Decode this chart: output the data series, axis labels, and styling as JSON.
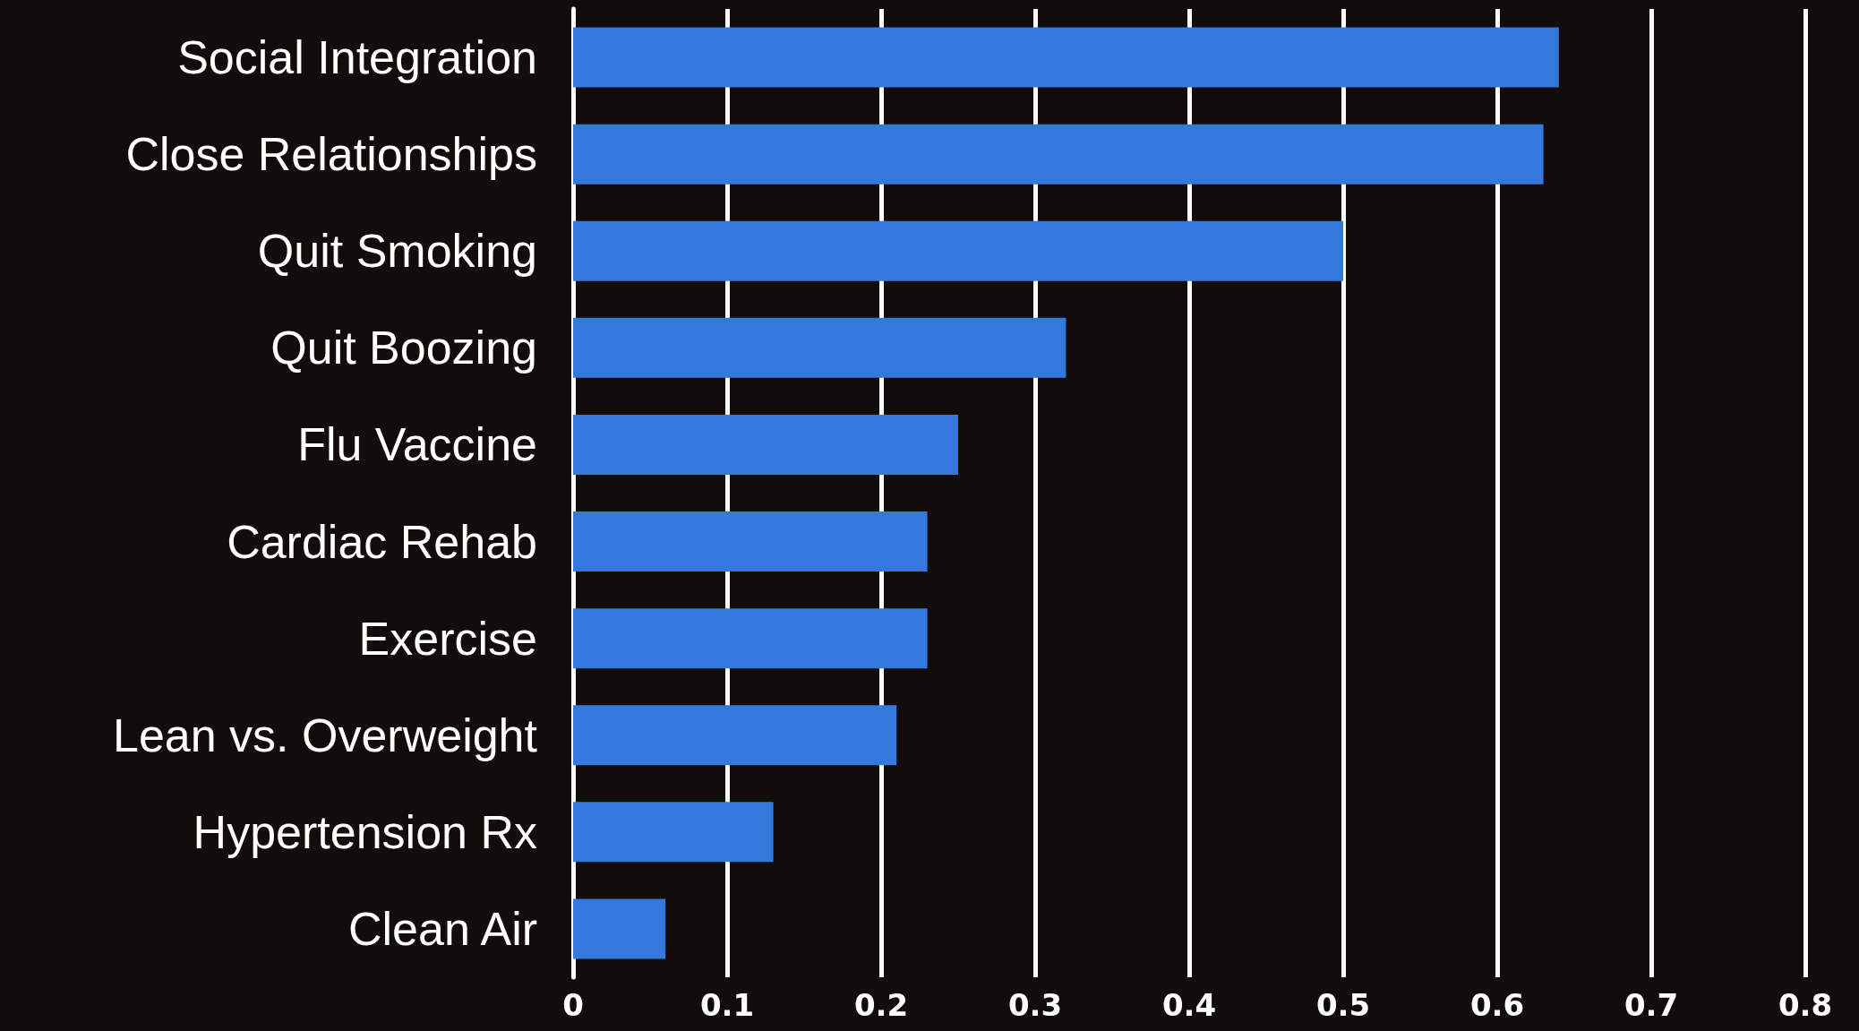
{
  "chart_data": {
    "type": "bar",
    "orientation": "horizontal",
    "categories": [
      "Social Integration",
      "Close Relationships",
      "Quit Smoking",
      "Quit Boozing",
      "Flu Vaccine",
      "Cardiac Rehab",
      "Exercise",
      "Lean vs. Overweight",
      "Hypertension Rx",
      "Clean Air"
    ],
    "values": [
      0.64,
      0.63,
      0.5,
      0.32,
      0.25,
      0.23,
      0.23,
      0.21,
      0.13,
      0.06
    ],
    "color": "#3578dc",
    "xlim": [
      0,
      0.8
    ],
    "xticks": [
      0,
      0.1,
      0.2,
      0.3,
      0.4,
      0.5,
      0.6,
      0.7,
      0.8
    ],
    "grid": "x"
  }
}
